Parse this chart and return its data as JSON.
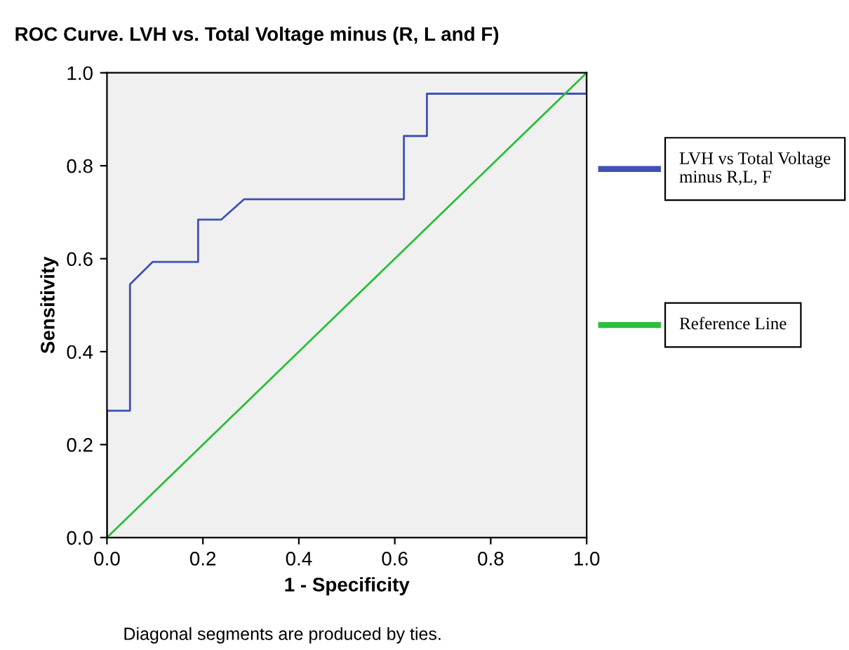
{
  "chart_data": {
    "type": "line",
    "title": "ROC Curve. LVH vs. Total Voltage minus (R, L and F)",
    "xlabel": "1 - Specificity",
    "ylabel": "Sensitivity",
    "xlim": [
      0,
      1
    ],
    "ylim": [
      0,
      1
    ],
    "xticks": [
      {
        "value": 0,
        "label": "0.0"
      },
      0.2,
      0.4,
      0.6,
      0.8,
      {
        "value": 1,
        "label": "1.0"
      }
    ],
    "yticks": [
      {
        "value": 0,
        "label": "0.0"
      },
      0.2,
      0.4,
      0.6,
      0.8,
      {
        "value": 1,
        "label": "1.0"
      }
    ],
    "series": [
      {
        "name": "LVH vs Total Voltage minus R,L, F",
        "color": "#3f51b5",
        "x": [
          0,
          0,
          0.048,
          0.048,
          0.095,
          0.19,
          0.19,
          0.238,
          0.286,
          0.619,
          0.619,
          0.667,
          0.667,
          1.0,
          1.0
        ],
        "values": [
          0,
          0.273,
          0.273,
          0.545,
          0.593,
          0.593,
          0.684,
          0.684,
          0.728,
          0.728,
          0.864,
          0.864,
          0.955,
          0.955,
          1.0
        ]
      },
      {
        "name": "Reference Line",
        "color": "#2bbf3b",
        "x": [
          0,
          1
        ],
        "values": [
          0,
          1
        ]
      }
    ],
    "legend": "right",
    "grid": false,
    "marker": "none",
    "line_style": "solid",
    "annotations": [
      "Diagonal segments are produced by ties."
    ]
  }
}
